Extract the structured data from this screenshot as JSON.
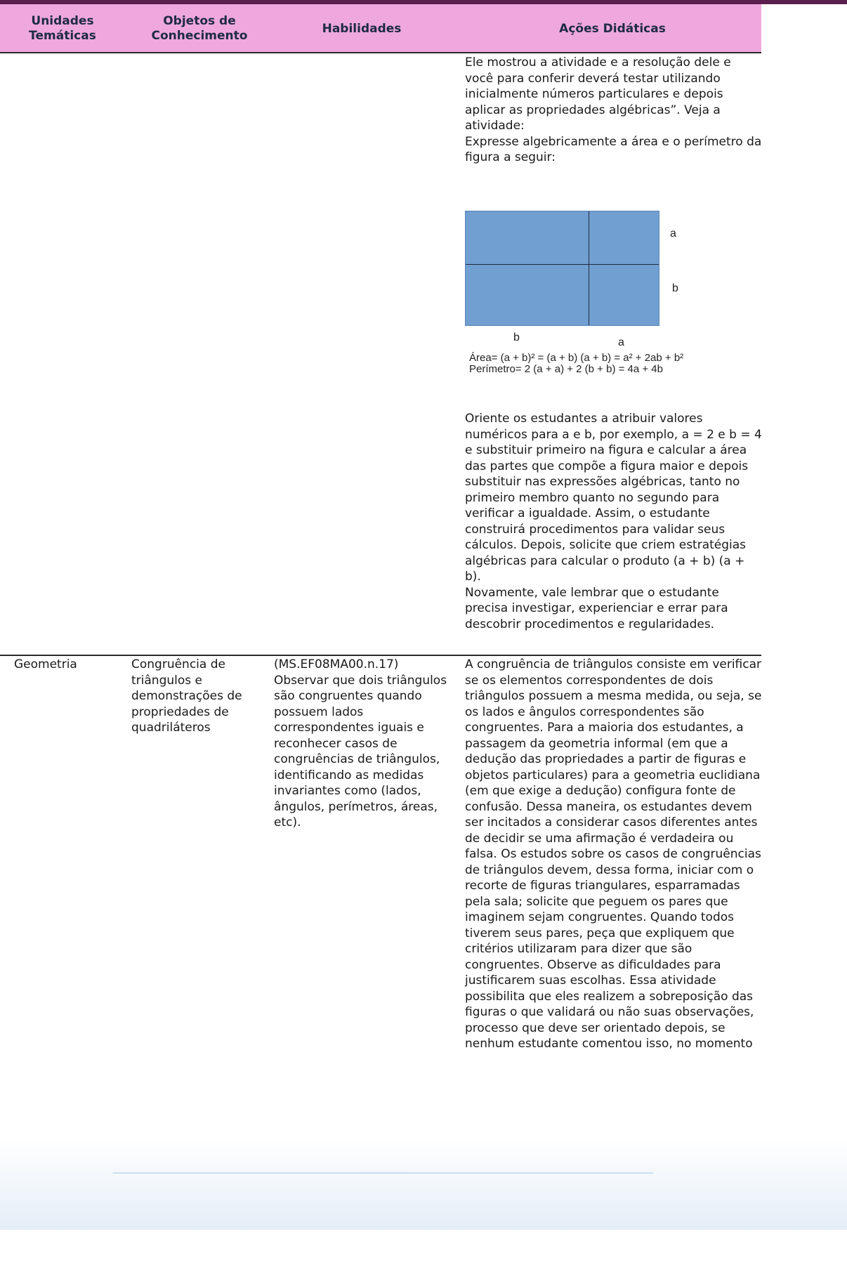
{
  "header": {
    "col1": "Unidades\nTemáticas",
    "col2": "Objetos de\nConhecimento",
    "col3": "Habilidades",
    "col4": "Ações Didáticas"
  },
  "row1": {
    "intro": "Ele mostrou a atividade e a resolução dele e\nvocê para conferir deverá testar utilizando\ninicialmente números particulares e depois\naplicar as propriedades algébricas”. Veja a\natividade:\nExpresse algebricamente a área e o perímetro da\nfigura a seguir:",
    "figure": {
      "side_right_top": "a",
      "side_right_bottom": "b",
      "side_bottom_left": "b",
      "side_bottom_right": "a",
      "area": "Área= (a + b)² = (a + b) (a + b) = a² + 2ab + b²",
      "perimeter": "Perímetro= 2 (a + a) + 2 (b + b) = 4a + 4b",
      "fill_color": "#729fd1"
    },
    "guidance": "Oriente os estudantes a atribuir valores\nnuméricos para a e b, por exemplo, a = 2 e b = 4\ne substituir primeiro na figura e calcular a área\ndas partes que compõe a figura maior e depois\nsubstituir nas expressões algébricas, tanto no\nprimeiro membro quanto no segundo para\nverificar a igualdade. Assim, o estudante\nconstruirá procedimentos para validar seus\ncálculos. Depois, solicite que criem estratégias\nalgébricas para calcular o produto (a + b) (a + b).\nNovamente, vale lembrar que o estudante\nprecisa investigar, experienciar e errar para\ndescobrir procedimentos e regularidades."
  },
  "row2": {
    "unit": "Geometria",
    "object": "Congruência de\ntriângulos e\ndemonstrações de\npropriedades de\nquadriláteros",
    "skill": "(MS.EF08MA00.n.17)\nObservar que dois triângulos\nsão congruentes quando\npossuem lados\ncorrespondentes iguais e\nreconhecer casos de\ncongruências de triângulos,\nidentificando as medidas\ninvariantes como (lados,\nângulos, perímetros, áreas,\netc).",
    "action": "A congruência de triângulos consiste em verificar\nse os elementos correspondentes de dois\ntriângulos possuem a mesma medida, ou seja, se\nos lados e ângulos correspondentes são\ncongruentes. Para a maioria dos estudantes, a\npassagem da geometria informal (em que a\ndedução das propriedades a partir de figuras e\nobjetos particulares) para a geometria euclidiana\n(em que exige a dedução) configura fonte de\nconfusão. Dessa maneira, os estudantes devem\nser incitados a considerar casos diferentes antes\nde decidir se uma afirmação é verdadeira ou\nfalsa. Os estudos sobre os casos de congruências\nde triângulos devem, dessa forma, iniciar com o\nrecorte de figuras triangulares, esparramadas\npela sala; solicite que peguem os pares que\nimaginem sejam congruentes. Quando todos\ntiverem seus pares, peça que expliquem que\ncritérios utilizaram para dizer que são\ncongruentes. Observe as dificuldades para\njustificarem suas escolhas. Essa atividade\npossibilita que eles realizem a sobreposição das\nfiguras o que validará ou não suas observações,\nprocesso que deve ser orientado depois, se\nnenhum estudante comentou isso, no momento"
  }
}
